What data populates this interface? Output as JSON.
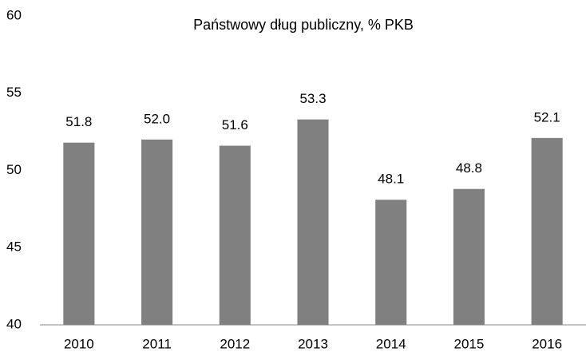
{
  "chart_data": {
    "type": "bar",
    "title": "Państwowy dług publiczny, % PKB",
    "categories": [
      "2010",
      "2011",
      "2012",
      "2013",
      "2014",
      "2015",
      "2016"
    ],
    "values": [
      51.8,
      52.0,
      51.6,
      53.3,
      48.1,
      48.8,
      52.1
    ],
    "value_labels": [
      "51.8",
      "52.0",
      "51.6",
      "53.3",
      "48.1",
      "48.8",
      "52.1"
    ],
    "color": "#808080",
    "ylim": [
      40,
      60
    ],
    "yticks": [
      40,
      45,
      50,
      55,
      60
    ],
    "grid": false
  }
}
